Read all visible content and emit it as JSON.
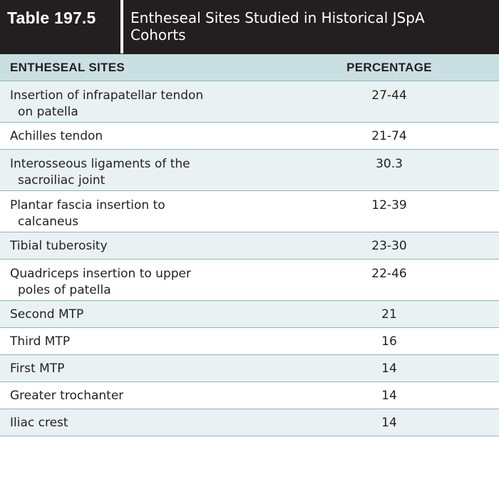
{
  "table": {
    "number": "Table 197.5",
    "title_line1": "Entheseal Sites Studied in Historical JSpA",
    "title_line2": "Cohorts",
    "headers": {
      "site": "ENTHESEAL SITES",
      "percentage": "PERCENTAGE"
    },
    "rows": [
      {
        "site_line1": "Insertion of infrapatellar tendon",
        "site_line2": "on patella",
        "percentage": "27-44"
      },
      {
        "site_line1": "Achilles tendon",
        "site_line2": "",
        "percentage": "21-74"
      },
      {
        "site_line1": "Interosseous ligaments of the",
        "site_line2": "sacroiliac joint",
        "percentage": "30.3"
      },
      {
        "site_line1": "Plantar fascia insertion to",
        "site_line2": "calcaneus",
        "percentage": "12-39"
      },
      {
        "site_line1": "Tibial tuberosity",
        "site_line2": "",
        "percentage": "23-30"
      },
      {
        "site_line1": "Quadriceps insertion to upper",
        "site_line2": "poles of patella",
        "percentage": "22-46"
      },
      {
        "site_line1": "Second MTP",
        "site_line2": "",
        "percentage": "21"
      },
      {
        "site_line1": "Third MTP",
        "site_line2": "",
        "percentage": "16"
      },
      {
        "site_line1": "First MTP",
        "site_line2": "",
        "percentage": "14"
      },
      {
        "site_line1": "Greater trochanter",
        "site_line2": "",
        "percentage": "14"
      },
      {
        "site_line1": "Iliac crest",
        "site_line2": "",
        "percentage": "14"
      }
    ]
  },
  "colors": {
    "title_bg": "#231f20",
    "header_bg": "#c9dfe2",
    "alt_row_bg": "#e9f1f2",
    "rule": "#8fb8bf"
  }
}
